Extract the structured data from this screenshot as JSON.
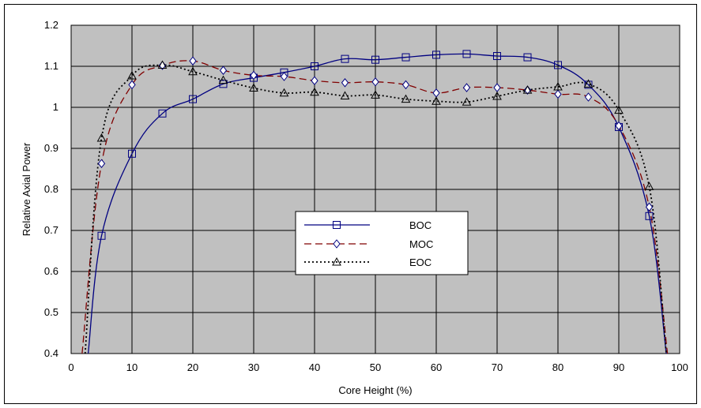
{
  "chart_data": {
    "type": "line",
    "title": "",
    "xlabel": "Core Height (%)",
    "ylabel": "Relative Axial Power",
    "xlim": [
      0,
      100
    ],
    "ylim": [
      0.4,
      1.2
    ],
    "x_ticks": [
      0,
      10,
      20,
      30,
      40,
      50,
      60,
      70,
      80,
      90,
      100
    ],
    "y_ticks": [
      0.4,
      0.5,
      0.6,
      0.7,
      0.8,
      0.9,
      1.0,
      1.1,
      1.2
    ],
    "x_tick_labels": [
      "0",
      "10",
      "20",
      "30",
      "40",
      "50",
      "60",
      "70",
      "80",
      "90",
      "100"
    ],
    "y_tick_labels": [
      "0.4",
      "0.5",
      "0.6",
      "0.7",
      "0.8",
      "0.9",
      "1",
      "1.1",
      "1.2"
    ],
    "grid": true,
    "plot_background": "#c0c0c0",
    "legend_position": "center",
    "series": [
      {
        "name": "BOC",
        "color": "#000080",
        "line_style": "solid",
        "marker": "square",
        "x": [
          2.8,
          5,
          10,
          15,
          20,
          25,
          30,
          35,
          40,
          45,
          50,
          55,
          60,
          65,
          70,
          75,
          80,
          85,
          90,
          95,
          97.8
        ],
        "y": [
          0.4,
          0.687,
          0.887,
          0.985,
          1.02,
          1.057,
          1.072,
          1.085,
          1.1,
          1.118,
          1.116,
          1.122,
          1.128,
          1.13,
          1.125,
          1.122,
          1.103,
          1.055,
          0.952,
          0.735,
          0.4
        ]
      },
      {
        "name": "MOC",
        "color": "#800000",
        "line_style": "dashed",
        "marker": "diamond",
        "x": [
          1.8,
          5,
          10,
          15,
          20,
          25,
          30,
          35,
          40,
          45,
          50,
          55,
          60,
          65,
          70,
          75,
          80,
          85,
          90,
          95,
          98
        ],
        "y": [
          0.4,
          0.863,
          1.055,
          1.102,
          1.113,
          1.09,
          1.078,
          1.075,
          1.065,
          1.06,
          1.062,
          1.055,
          1.035,
          1.048,
          1.048,
          1.042,
          1.032,
          1.025,
          0.955,
          0.757,
          0.4
        ]
      },
      {
        "name": "EOC",
        "color": "#000000",
        "line_style": "dotted",
        "marker": "triangle",
        "x": [
          2.3,
          5,
          10,
          15,
          20,
          25,
          30,
          35,
          40,
          45,
          50,
          55,
          60,
          65,
          70,
          75,
          80,
          85,
          90,
          95,
          97.8
        ],
        "y": [
          0.4,
          0.925,
          1.077,
          1.103,
          1.087,
          1.066,
          1.047,
          1.035,
          1.037,
          1.028,
          1.03,
          1.02,
          1.015,
          1.013,
          1.027,
          1.042,
          1.05,
          1.057,
          0.993,
          0.807,
          0.4
        ]
      }
    ]
  }
}
